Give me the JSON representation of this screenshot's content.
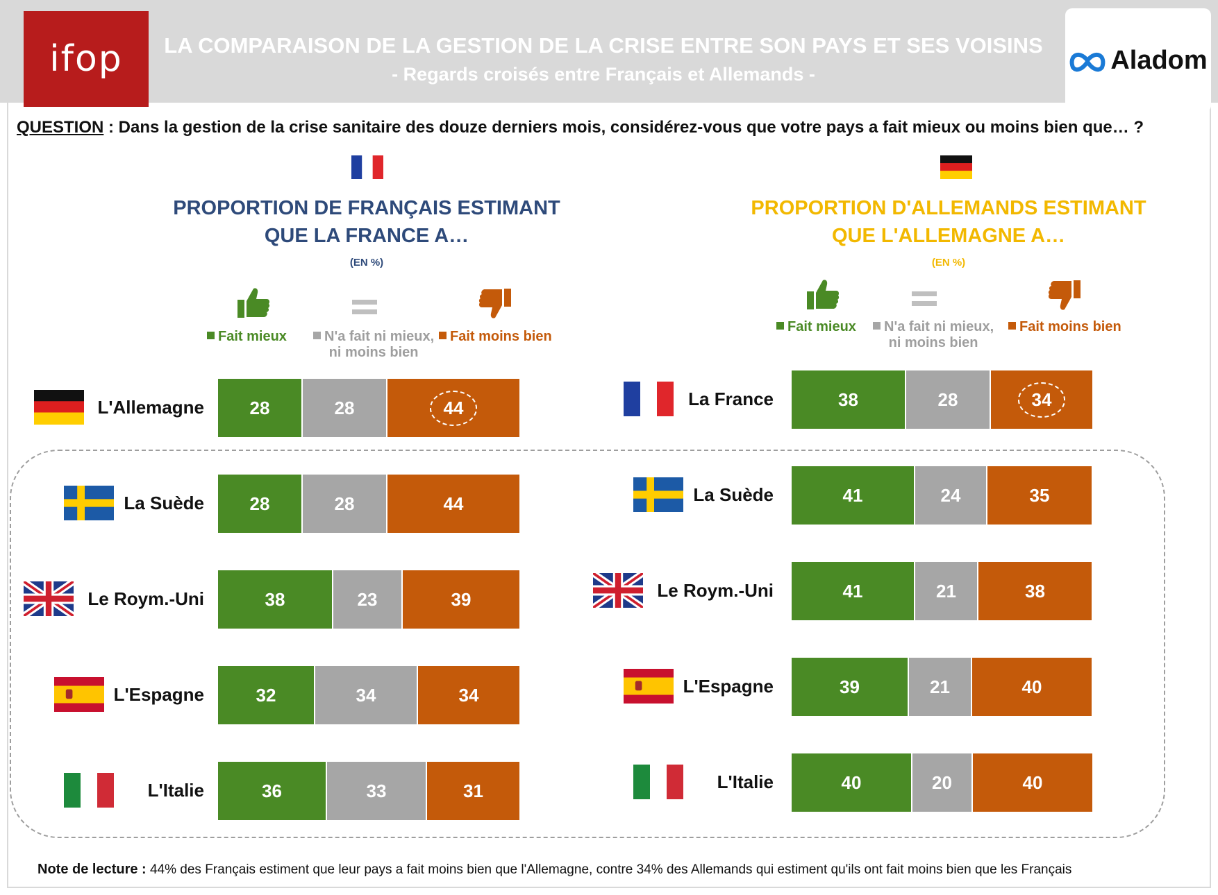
{
  "header": {
    "logo_left": "ifop",
    "title": "LA COMPARAISON DE LA GESTION DE LA CRISE ENTRE SON PAYS ET SES VOISINS",
    "subtitle": "- Regards croisés entre Français et Allemands -",
    "logo_right": "Aladom"
  },
  "question": {
    "label": "QUESTION",
    "text": " : Dans la gestion de la crise sanitaire des douze derniers mois, considérez-vous que votre pays a fait mieux ou moins bien que… ?"
  },
  "legend": {
    "better": "Fait mieux",
    "neutral_line1": "N'a fait ni mieux,",
    "neutral_line2": "ni moins bien",
    "worse": "Fait moins bien"
  },
  "colors": {
    "better": "#4a8a25",
    "neutral": "#a6a6a6",
    "worse": "#c45a0a",
    "french_title": "#2e4a7a",
    "german_title": "#f2b800"
  },
  "icons": [
    "thumbs-up-icon",
    "equals-icon",
    "thumbs-down-icon"
  ],
  "note": {
    "label": "Note de lecture :",
    "text": " 44% des Français estiment que leur pays a fait moins bien que l'Allemagne, contre 34% des Allemands qui estiment qu'ils ont fait moins bien que les Français"
  },
  "chart_data": [
    {
      "type": "bar",
      "stacked": true,
      "orientation": "horizontal",
      "title_line1": "PROPORTION DE FRANÇAIS ESTIMANT",
      "title_line2": "QUE LA FRANCE A…",
      "unit": "(EN %)",
      "flag": "france",
      "categories": [
        "L'Allemagne",
        "La Suède",
        "Le Roym.-Uni",
        "L'Espagne",
        "L'Italie"
      ],
      "category_flags": [
        "germany",
        "sweden",
        "uk",
        "spain",
        "italy"
      ],
      "series": [
        {
          "name": "Fait mieux",
          "values": [
            28,
            28,
            38,
            32,
            36
          ]
        },
        {
          "name": "N'a fait ni mieux, ni moins bien",
          "values": [
            28,
            28,
            23,
            34,
            33
          ]
        },
        {
          "name": "Fait moins bien",
          "values": [
            44,
            44,
            39,
            34,
            31
          ]
        }
      ],
      "highlight": {
        "category_index": 0,
        "series_index": 2
      }
    },
    {
      "type": "bar",
      "stacked": true,
      "orientation": "horizontal",
      "title_line1": "PROPORTION D'ALLEMANDS ESTIMANT",
      "title_line2": "QUE L'ALLEMAGNE A…",
      "unit": "(EN %)",
      "flag": "germany",
      "categories": [
        "La France",
        "La Suède",
        "Le Roym.-Uni",
        "L'Espagne",
        "L'Italie"
      ],
      "category_flags": [
        "france",
        "sweden",
        "uk",
        "spain",
        "italy"
      ],
      "series": [
        {
          "name": "Fait mieux",
          "values": [
            38,
            41,
            41,
            39,
            40
          ]
        },
        {
          "name": "N'a fait ni mieux, ni moins bien",
          "values": [
            28,
            24,
            21,
            21,
            20
          ]
        },
        {
          "name": "Fait moins bien",
          "values": [
            34,
            35,
            38,
            40,
            40
          ]
        }
      ],
      "highlight": {
        "category_index": 0,
        "series_index": 2
      }
    }
  ]
}
